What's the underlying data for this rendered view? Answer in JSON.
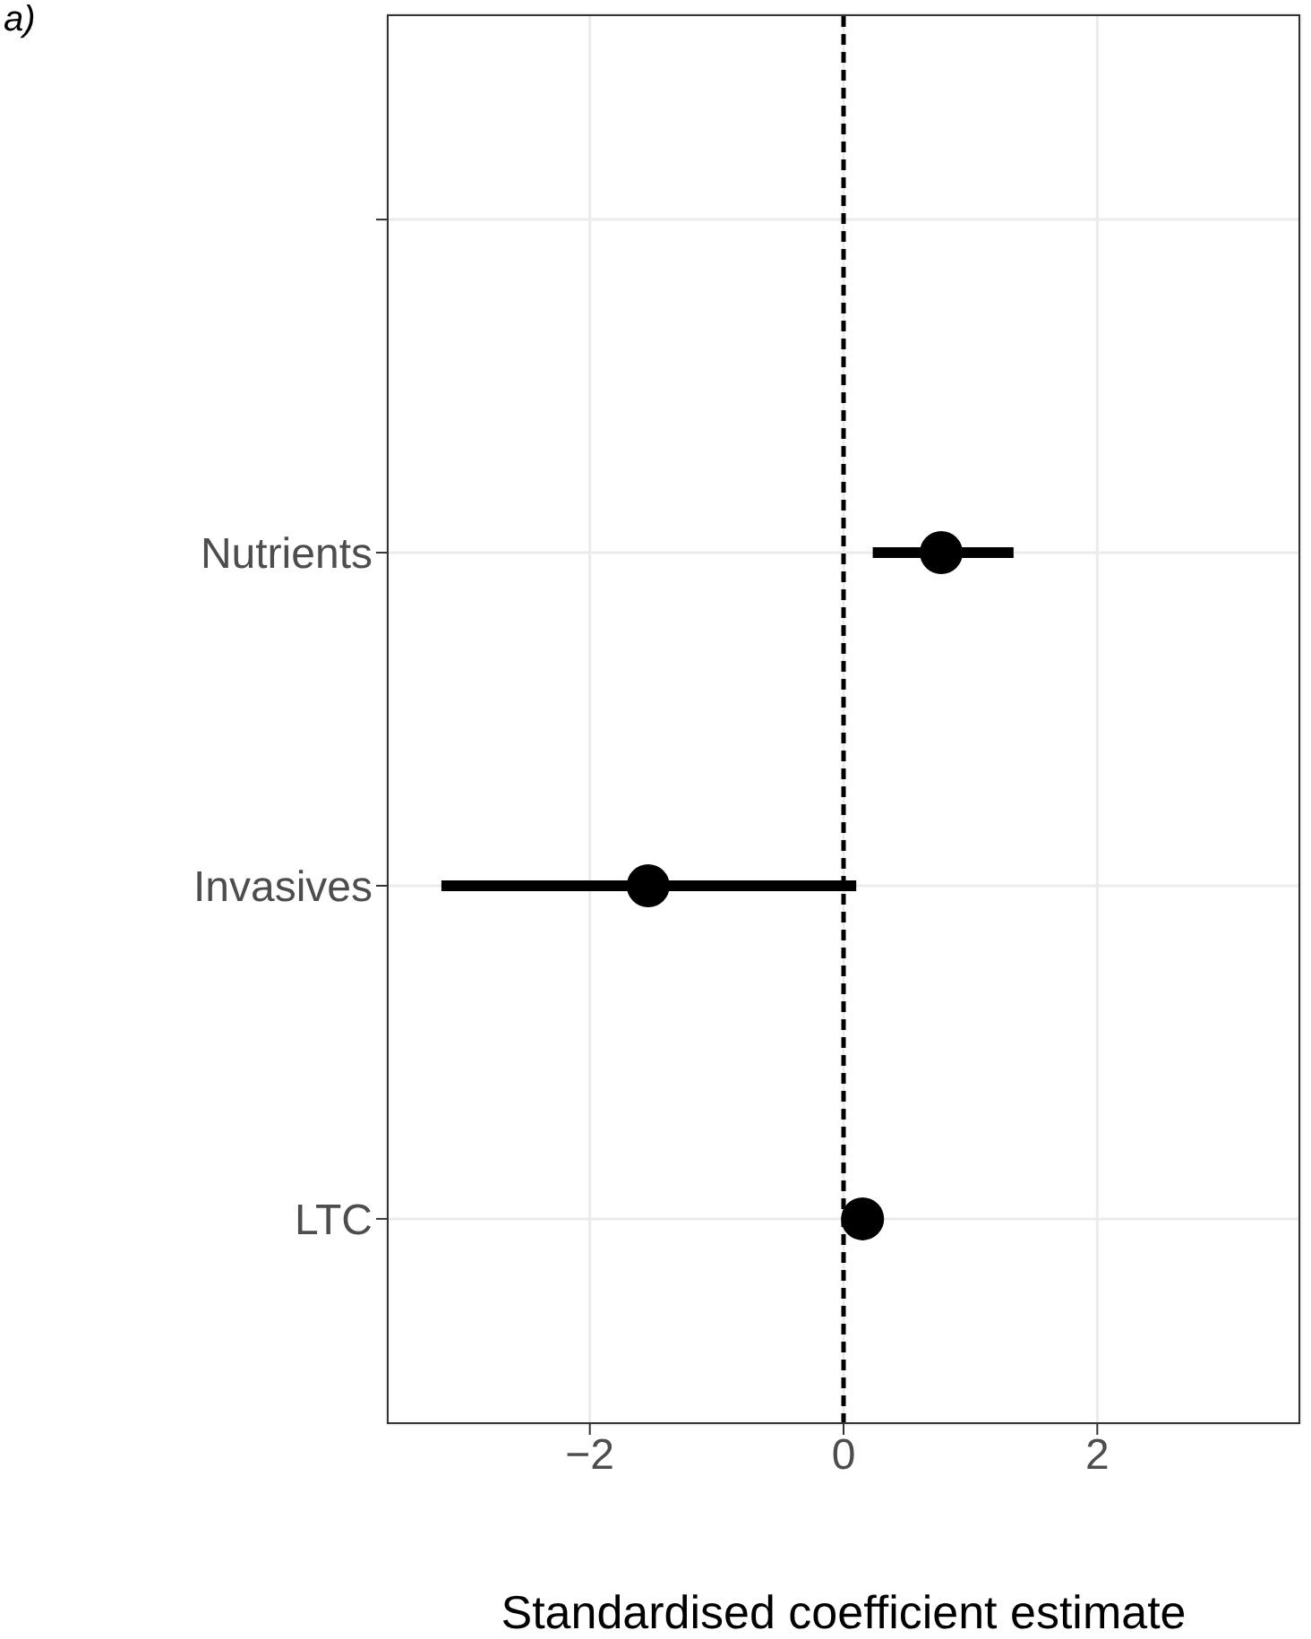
{
  "chart_data": {
    "type": "scatter",
    "orientation": "horizontal",
    "xlabel": "Standardised coefficient estimate",
    "annotations": [
      "a)"
    ],
    "categories": [
      null,
      "Nutrients",
      "Invasives",
      "LTC"
    ],
    "values": [
      null,
      0.77,
      -1.54,
      0.15
    ],
    "errors": [
      null,
      [
        0.23,
        1.34
      ],
      [
        -3.17,
        0.1
      ],
      null
    ],
    "color": "#000000",
    "marker": "circle",
    "xlim": [
      -3.6,
      3.6
    ],
    "xticks": [
      {
        "value": -2,
        "label": "−2"
      },
      0,
      2
    ],
    "ref_lines": [
      {
        "axis": "x",
        "value": 0,
        "line_style": "dashed",
        "color": "#000000"
      }
    ],
    "grid": true
  }
}
